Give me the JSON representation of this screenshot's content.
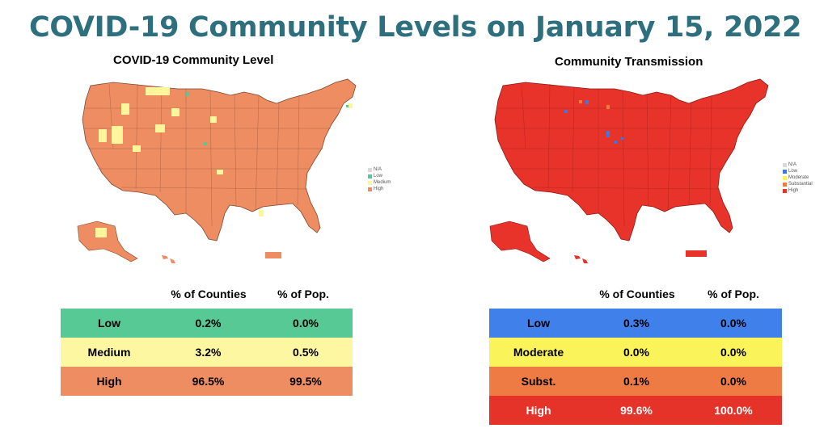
{
  "title": "COVID-19 Community Levels on January 15, 2022",
  "colors": {
    "title": "#2e6f7e"
  },
  "left": {
    "map_title": "COVID-19 Community Level",
    "legend": [
      {
        "label": "N/A",
        "color": "#d9d9d9"
      },
      {
        "label": "Low",
        "color": "#57c994"
      },
      {
        "label": "Medium",
        "color": "#fff59a"
      },
      {
        "label": "High",
        "color": "#ee8a5e"
      }
    ],
    "table": {
      "headers": [
        "% of Counties",
        "% of Pop."
      ],
      "rows": [
        {
          "label": "Low",
          "counties": "0.2%",
          "pop": "0.0%",
          "color": "#57c994"
        },
        {
          "label": "Medium",
          "counties": "3.2%",
          "pop": "0.5%",
          "color": "#fdf7a1"
        },
        {
          "label": "High",
          "counties": "96.5%",
          "pop": "99.5%",
          "color": "#ee8c62"
        }
      ]
    }
  },
  "right": {
    "map_title": "Community Transmission",
    "legend": [
      {
        "label": "N/A",
        "color": "#d9d9d9"
      },
      {
        "label": "Low",
        "color": "#3c78e0"
      },
      {
        "label": "Moderate",
        "color": "#fff35c"
      },
      {
        "label": "Substantial",
        "color": "#f07b3f"
      },
      {
        "label": "High",
        "color": "#e8332a"
      }
    ],
    "table": {
      "headers": [
        "% of Counties",
        "% of Pop."
      ],
      "rows": [
        {
          "label": "Low",
          "counties": "0.3%",
          "pop": "0.0%",
          "color": "#3f80ea"
        },
        {
          "label": "Moderate",
          "counties": "0.0%",
          "pop": "0.0%",
          "color": "#fbf35a"
        },
        {
          "label": "Subst.",
          "counties": "0.1%",
          "pop": "0.0%",
          "color": "#ee7a44"
        },
        {
          "label": "High",
          "counties": "99.6%",
          "pop": "100.0%",
          "color": "#e6332a"
        }
      ]
    }
  }
}
